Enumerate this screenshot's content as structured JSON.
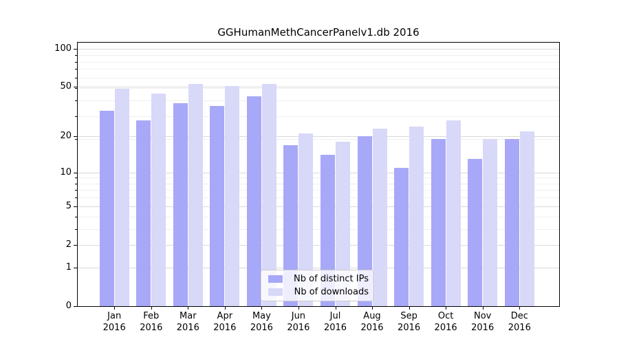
{
  "chart_data": {
    "type": "bar",
    "title": "GGHumanMethCancerPanelv1.db 2016",
    "categories": [
      "Jan",
      "Feb",
      "Mar",
      "Apr",
      "May",
      "Jun",
      "Jul",
      "Aug",
      "Sep",
      "Oct",
      "Nov",
      "Dec"
    ],
    "year_label": "2016",
    "series": [
      {
        "name": "Nb of distinct IPs",
        "color": "#a8a8f8",
        "values": [
          32,
          27,
          37,
          35,
          42,
          17,
          14,
          20,
          11,
          19,
          13,
          19
        ]
      },
      {
        "name": "Nb of downloads",
        "color": "#d8d8f8",
        "values": [
          48,
          44,
          53,
          51,
          53,
          21,
          18,
          23,
          24,
          27,
          19,
          22
        ]
      }
    ],
    "yscale": "log1p",
    "ylim": [
      0,
      112
    ],
    "yticks": [
      0,
      1,
      2,
      5,
      10,
      20,
      50,
      100
    ],
    "minor_yticks": [
      3,
      4,
      6,
      7,
      8,
      9,
      19,
      29,
      39,
      49,
      59,
      69,
      79,
      89
    ],
    "grid": true,
    "legend_position": "inside-bottom-center",
    "colors": {
      "grid_major": "#d9d9d9",
      "grid_minor": "#efefef",
      "spine": "#000000",
      "background": "#ffffff"
    }
  }
}
